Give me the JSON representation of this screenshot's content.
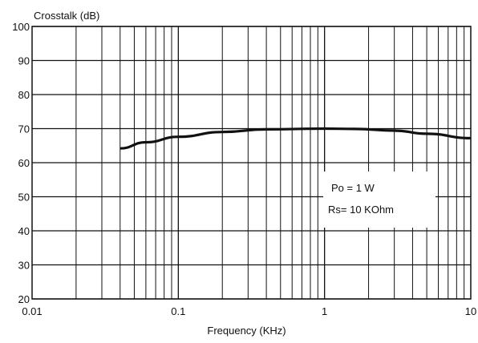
{
  "chart_data": {
    "type": "line",
    "title": "",
    "ylabel": "Crosstalk (dB)",
    "xlabel": "Frequency (KHz)",
    "x_scale": "log",
    "xlim": [
      0.01,
      10
    ],
    "ylim": [
      20,
      100
    ],
    "grid": true,
    "x_tick_labels": [
      {
        "value": 0.01,
        "label": "0.01"
      },
      {
        "value": 0.1,
        "label": "0.1"
      },
      {
        "value": 1,
        "label": "1"
      },
      {
        "value": 10,
        "label": "10"
      }
    ],
    "y_tick_labels": [
      {
        "value": 20,
        "label": "20"
      },
      {
        "value": 30,
        "label": "30"
      },
      {
        "value": 40,
        "label": "40"
      },
      {
        "value": 50,
        "label": "50"
      },
      {
        "value": 60,
        "label": "60"
      },
      {
        "value": 70,
        "label": "70"
      },
      {
        "value": 80,
        "label": "80"
      },
      {
        "value": 90,
        "label": "90"
      },
      {
        "value": 100,
        "label": "100"
      }
    ],
    "series": [
      {
        "x": [
          0.04,
          0.06,
          0.1,
          0.2,
          0.4,
          1,
          1.6,
          3,
          5,
          10
        ],
        "y": [
          64.2,
          66,
          67.6,
          69,
          69.8,
          70,
          69.9,
          69.4,
          68.5,
          67.2
        ]
      }
    ],
    "annotation": {
      "lines": [
        "Po = 1 W",
        "Rs= 10 KOhm"
      ],
      "position": "right-middle"
    }
  }
}
